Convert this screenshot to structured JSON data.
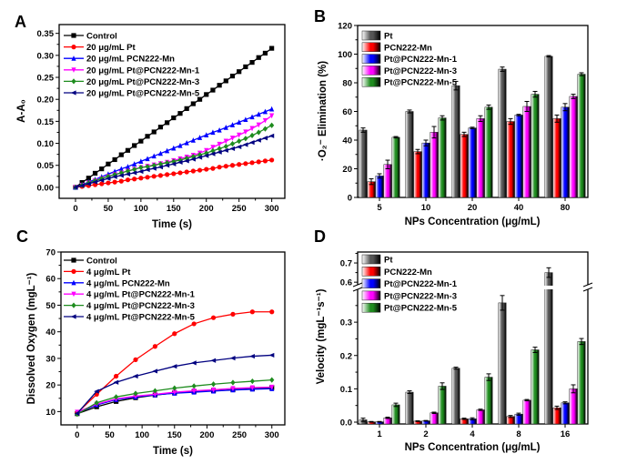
{
  "chart_data": [
    {
      "panel": "A",
      "type": "line",
      "xlabel": "Time (s)",
      "ylabel": "A-A₀",
      "xlim": [
        -25,
        320
      ],
      "ylim": [
        -0.025,
        0.37
      ],
      "xticks": [
        "0",
        "50",
        "100",
        "150",
        "200",
        "250",
        "300"
      ],
      "yticks": [
        "0.00",
        "0.05",
        "0.10",
        "0.15",
        "0.20",
        "0.25",
        "0.30",
        "0.35"
      ],
      "legend_position": "top-left",
      "x": [
        0,
        10,
        20,
        30,
        40,
        50,
        60,
        70,
        80,
        90,
        100,
        110,
        120,
        130,
        140,
        150,
        160,
        170,
        180,
        190,
        200,
        210,
        220,
        230,
        240,
        250,
        260,
        270,
        280,
        290,
        300
      ],
      "series": [
        {
          "name": "Control",
          "color": "#000000",
          "marker": "square",
          "values": [
            0,
            0.011,
            0.021,
            0.032,
            0.042,
            0.053,
            0.063,
            0.074,
            0.084,
            0.095,
            0.105,
            0.116,
            0.126,
            0.137,
            0.147,
            0.158,
            0.168,
            0.179,
            0.19,
            0.2,
            0.211,
            0.221,
            0.232,
            0.242,
            0.253,
            0.263,
            0.274,
            0.284,
            0.295,
            0.305,
            0.316
          ]
        },
        {
          "name": "20 μg/mL Pt",
          "color": "#ff0000",
          "marker": "circle",
          "values": [
            0,
            0.002,
            0.004,
            0.006,
            0.008,
            0.01,
            0.012,
            0.014,
            0.017,
            0.019,
            0.021,
            0.023,
            0.025,
            0.027,
            0.029,
            0.031,
            0.033,
            0.035,
            0.037,
            0.039,
            0.041,
            0.043,
            0.046,
            0.048,
            0.05,
            0.052,
            0.054,
            0.056,
            0.058,
            0.06,
            0.062
          ]
        },
        {
          "name": "20 μg/mL PCN222-Mn",
          "color": "#0000ff",
          "marker": "triangle-up",
          "values": [
            0,
            0.006,
            0.012,
            0.018,
            0.024,
            0.03,
            0.036,
            0.042,
            0.047,
            0.053,
            0.059,
            0.065,
            0.071,
            0.077,
            0.083,
            0.089,
            0.095,
            0.101,
            0.107,
            0.113,
            0.119,
            0.125,
            0.13,
            0.136,
            0.142,
            0.148,
            0.154,
            0.16,
            0.166,
            0.172,
            0.178
          ]
        },
        {
          "name": "20 μg/mL Pt@PCN222-Mn-1",
          "color": "#ff00ff",
          "marker": "triangle-down",
          "values": [
            0,
            0.005,
            0.01,
            0.015,
            0.02,
            0.025,
            0.029,
            0.033,
            0.037,
            0.041,
            0.045,
            0.048,
            0.051,
            0.054,
            0.057,
            0.061,
            0.065,
            0.069,
            0.073,
            0.078,
            0.084,
            0.091,
            0.098,
            0.105,
            0.112,
            0.119,
            0.126,
            0.134,
            0.142,
            0.152,
            0.163
          ]
        },
        {
          "name": "20 μg/mL Pt@PCN222-Mn-3",
          "color": "#1e8c1e",
          "marker": "diamond",
          "values": [
            0,
            0.005,
            0.01,
            0.015,
            0.02,
            0.025,
            0.029,
            0.033,
            0.037,
            0.041,
            0.045,
            0.047,
            0.05,
            0.053,
            0.056,
            0.059,
            0.062,
            0.066,
            0.07,
            0.074,
            0.078,
            0.083,
            0.088,
            0.093,
            0.099,
            0.105,
            0.111,
            0.118,
            0.125,
            0.133,
            0.141
          ]
        },
        {
          "name": "20 μg/mL Pt@PCN222-Mn-5",
          "color": "#000080",
          "marker": "triangle-left",
          "values": [
            0,
            0.004,
            0.008,
            0.012,
            0.016,
            0.02,
            0.024,
            0.027,
            0.03,
            0.033,
            0.036,
            0.04,
            0.043,
            0.046,
            0.05,
            0.053,
            0.057,
            0.06,
            0.064,
            0.068,
            0.072,
            0.076,
            0.08,
            0.084,
            0.088,
            0.092,
            0.097,
            0.102,
            0.107,
            0.112,
            0.117
          ]
        }
      ]
    },
    {
      "panel": "B",
      "type": "bar",
      "xlabel": "NPs Concentration (μg/mL)",
      "ylabel": "·O₂⁻ Elimination (%)",
      "ylim": [
        0,
        120
      ],
      "yticks": [
        "0",
        "20",
        "40",
        "60",
        "80",
        "100",
        "120"
      ],
      "categories": [
        "5",
        "10",
        "20",
        "40",
        "80"
      ],
      "legend_position": "top-left",
      "series": [
        {
          "name": "Pt",
          "color": "#555555",
          "values": [
            47,
            60,
            78,
            89.5,
            98.5
          ],
          "errors": [
            1.5,
            1,
            3,
            1.5,
            0.5
          ]
        },
        {
          "name": "PCN222-Mn",
          "color": "#ff0000",
          "values": [
            11,
            32,
            44,
            53,
            55
          ],
          "errors": [
            2,
            1.5,
            1.5,
            2,
            2.5
          ]
        },
        {
          "name": "Pt@PCN222-Mn-1",
          "color": "#0000ff",
          "values": [
            15,
            38,
            48.5,
            57.5,
            63
          ],
          "errors": [
            1.5,
            2,
            0.5,
            0.5,
            2.5
          ]
        },
        {
          "name": "Pt@PCN222-Mn-3",
          "color": "#ff00ff",
          "values": [
            23,
            45.5,
            55,
            63.5,
            70.5
          ],
          "errors": [
            3,
            4,
            2,
            3.5,
            1.5
          ]
        },
        {
          "name": "Pt@PCN222-Mn-5",
          "color": "#1e8c1e",
          "values": [
            42,
            55.5,
            63,
            72,
            86
          ],
          "errors": [
            0.5,
            1.5,
            1.5,
            2,
            1
          ]
        }
      ]
    },
    {
      "panel": "C",
      "type": "line",
      "xlabel": "Time (s)",
      "ylabel": "Dissolved Oxygen (mgL⁻¹)",
      "xlim": [
        -25,
        320
      ],
      "ylim": [
        5,
        70
      ],
      "xticks": [
        "0",
        "50",
        "100",
        "150",
        "200",
        "250",
        "300"
      ],
      "yticks": [
        "10",
        "20",
        "30",
        "40",
        "50",
        "60",
        "70"
      ],
      "legend_position": "top-left",
      "x": [
        0,
        30,
        60,
        90,
        120,
        150,
        180,
        210,
        240,
        270,
        300
      ],
      "series": [
        {
          "name": "Control",
          "color": "#000000",
          "marker": "square",
          "values": [
            9.2,
            11.8,
            13.8,
            15.2,
            16.2,
            17,
            17.5,
            17.8,
            18.2,
            18.6,
            19
          ]
        },
        {
          "name": "4 μg/mL Pt",
          "color": "#ff0000",
          "marker": "circle",
          "values": [
            9.5,
            16.5,
            23.3,
            29.5,
            34.5,
            39.3,
            43,
            45.3,
            46.6,
            47.5,
            47.5
          ]
        },
        {
          "name": "4 μg/mL PCN222-Mn",
          "color": "#0000ff",
          "marker": "triangle-up",
          "values": [
            9.5,
            12.5,
            14.5,
            15.5,
            16.3,
            16.9,
            17.3,
            17.7,
            18.1,
            18.4,
            18.6
          ]
        },
        {
          "name": "4 μg/mL Pt@PCN222-Mn-1",
          "color": "#ff00ff",
          "marker": "triangle-down",
          "values": [
            9.8,
            12.8,
            14.8,
            15.8,
            16.5,
            17.3,
            17.8,
            18.2,
            18.7,
            19,
            19.2
          ]
        },
        {
          "name": "4 μg/mL Pt@PCN222-Mn-3",
          "color": "#1e8c1e",
          "marker": "diamond",
          "values": [
            9,
            13.3,
            15.5,
            16.8,
            17.8,
            18.8,
            19.6,
            20.3,
            20.9,
            21.4,
            21.9
          ]
        },
        {
          "name": "4 μg/mL Pt@PCN222-Mn-5",
          "color": "#000080",
          "marker": "triangle-left",
          "values": [
            9.3,
            17.6,
            21,
            23.3,
            25.2,
            27,
            28.3,
            29.2,
            30.1,
            30.8,
            31.2
          ]
        }
      ]
    },
    {
      "panel": "D",
      "type": "bar",
      "xlabel": "NPs Concentration (μg/mL)",
      "ylabel": "Velocity (mgL⁻¹s⁻¹)",
      "ylim_lower": [
        0,
        0.4
      ],
      "ylim_upper": [
        0.57,
        0.757
      ],
      "yticks_lower": [
        "0.0",
        "0.1",
        "0.2",
        "0.3"
      ],
      "yticks_upper": [
        "0.6",
        "0.7"
      ],
      "categories": [
        "1",
        "2",
        "4",
        "8",
        "16"
      ],
      "legend_position": "top-left",
      "series": [
        {
          "name": "Pt",
          "color": "#555555",
          "values": [
            0.007,
            0.09,
            0.162,
            0.358,
            0.65
          ],
          "errors": [
            0.005,
            0.004,
            0.003,
            0.022,
            0.025
          ]
        },
        {
          "name": "PCN222-Mn",
          "color": "#ff0000",
          "values": [
            0.001,
            0.003,
            0.01,
            0.017,
            0.043
          ],
          "errors": [
            0.001,
            0.001,
            0.002,
            0.003,
            0.005
          ]
        },
        {
          "name": "Pt@PCN222-Mn-1",
          "color": "#0000ff",
          "values": [
            0.001,
            0.004,
            0.01,
            0.024,
            0.058
          ],
          "errors": [
            0.001,
            0.001,
            0.003,
            0.003,
            0.003
          ]
        },
        {
          "name": "Pt@PCN222-Mn-3",
          "color": "#ff00ff",
          "values": [
            0.013,
            0.028,
            0.037,
            0.066,
            0.1
          ],
          "errors": [
            0.002,
            0.002,
            0.002,
            0.002,
            0.012
          ]
        },
        {
          "name": "Pt@PCN222-Mn-5",
          "color": "#1e8c1e",
          "values": [
            0.052,
            0.108,
            0.135,
            0.217,
            0.242
          ],
          "errors": [
            0.005,
            0.01,
            0.01,
            0.008,
            0.009
          ]
        }
      ]
    }
  ]
}
